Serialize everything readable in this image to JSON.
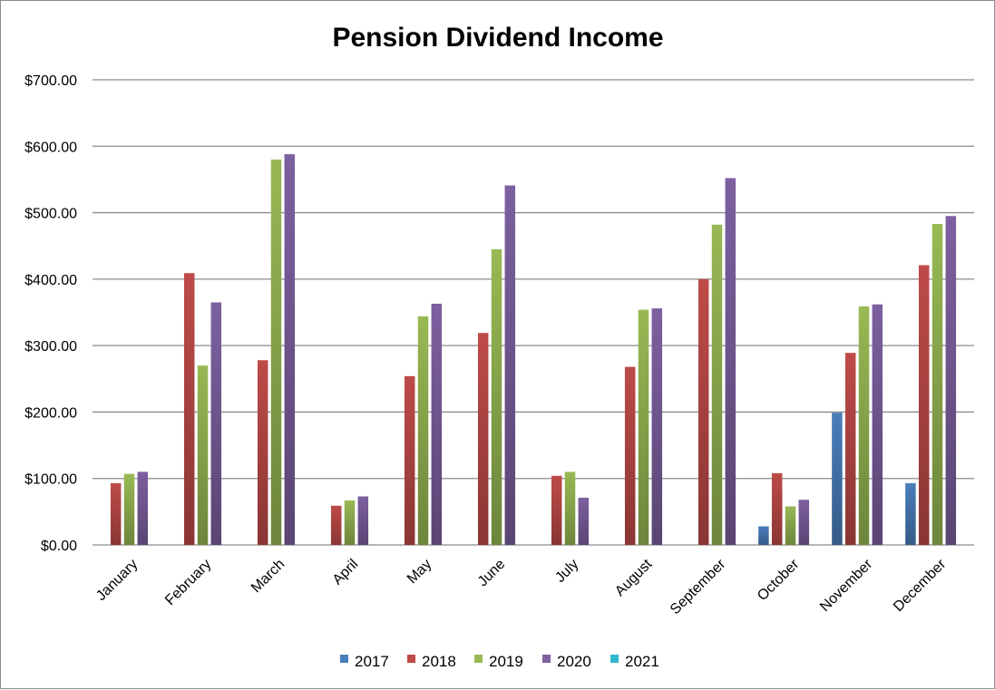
{
  "chart_data": {
    "type": "bar",
    "title": "Pension Dividend Income",
    "xlabel": "",
    "ylabel": "",
    "ylim": [
      0,
      700
    ],
    "yticks": [
      "$0.00",
      "$100.00",
      "$200.00",
      "$300.00",
      "$400.00",
      "$500.00",
      "$600.00",
      "$700.00"
    ],
    "ytick_values": [
      0,
      100,
      200,
      300,
      400,
      500,
      600,
      700
    ],
    "grid": true,
    "legend_position": "bottom",
    "categories": [
      "January",
      "February",
      "March",
      "April",
      "May",
      "June",
      "July",
      "August",
      "September",
      "October",
      "November",
      "December"
    ],
    "series": [
      {
        "name": "2017",
        "color": "#4a7ebb",
        "values": [
          0,
          0,
          0,
          0,
          0,
          0,
          0,
          0,
          0,
          28,
          199,
          93
        ]
      },
      {
        "name": "2018",
        "color": "#be4b48",
        "values": [
          93,
          409,
          278,
          59,
          254,
          319,
          104,
          268,
          400,
          108,
          289,
          421
        ]
      },
      {
        "name": "2019",
        "color": "#98b954",
        "values": [
          107,
          270,
          580,
          67,
          344,
          445,
          110,
          354,
          482,
          58,
          359,
          483
        ]
      },
      {
        "name": "2020",
        "color": "#7d60a0",
        "values": [
          110,
          365,
          588,
          73,
          363,
          541,
          71,
          356,
          552,
          68,
          362,
          495
        ]
      },
      {
        "name": "2021",
        "color": "#31b6ce",
        "values": [
          0,
          0,
          0,
          0,
          0,
          0,
          0,
          0,
          0,
          0,
          0,
          0
        ]
      }
    ]
  }
}
